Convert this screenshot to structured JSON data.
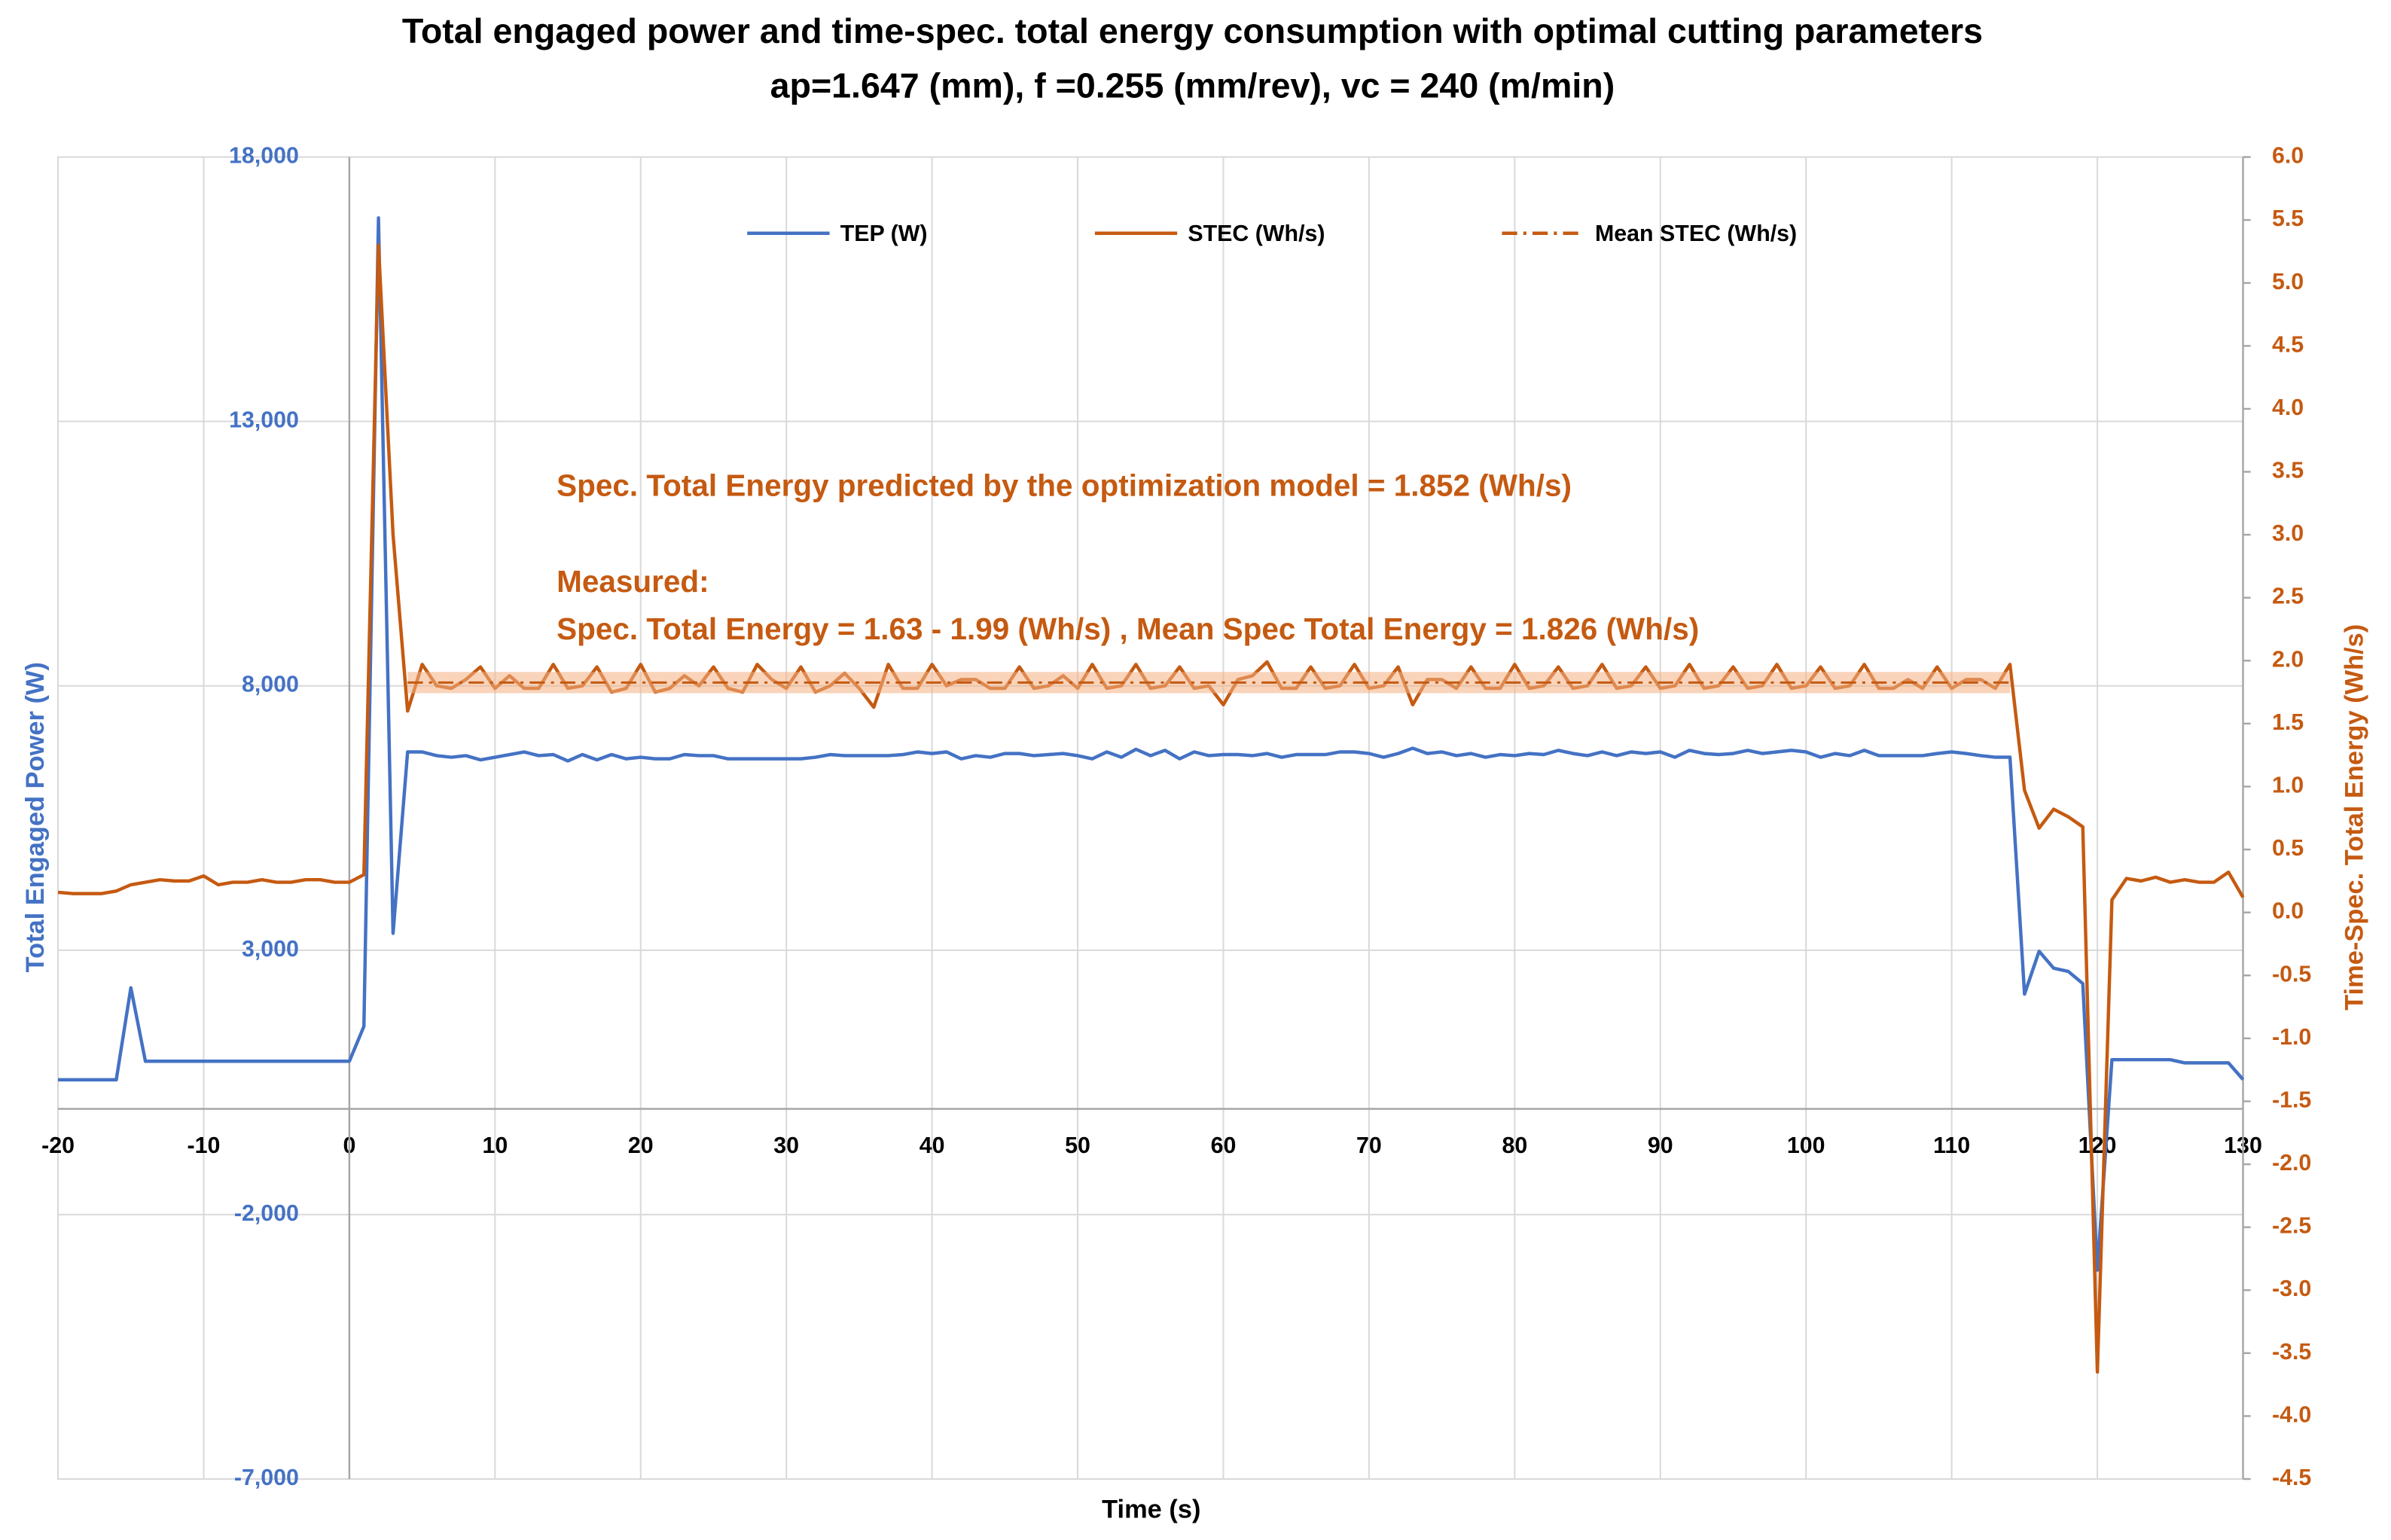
{
  "chart_data": {
    "type": "line",
    "title": "Total engaged power and time-spec. total energy consumption with optimal cutting parameters",
    "subtitle": "ap=1.647 (mm), f =0.255 (mm/rev), vc = 240 (m/min)",
    "x_label": "Time (s)",
    "y_label": "Total Engaged Power (W)",
    "y2_label": "Time-Spec. Total Energy (Wh/s)",
    "annotations": [
      "Spec. Total Energy predicted by the optimization model = 1.852 (Wh/s)",
      "Measured:",
      "Spec. Total Energy = 1.63 - 1.99 (Wh/s) , Mean Spec Total Energy = 1.826 (Wh/s)"
    ],
    "legend": "top",
    "grid": true,
    "xlim": [
      -20,
      130
    ],
    "xticks": [
      -20,
      -10,
      0,
      10,
      20,
      30,
      40,
      50,
      60,
      70,
      80,
      90,
      100,
      110,
      120,
      130
    ],
    "ylim": [
      -7000,
      18000
    ],
    "yticks": [
      {
        "value": -7000,
        "label": "-7,000"
      },
      {
        "value": -2000,
        "label": "-2,000"
      },
      {
        "value": 3000,
        "label": "3,000"
      },
      {
        "value": 8000,
        "label": "8,000"
      },
      {
        "value": 13000,
        "label": "13,000"
      },
      {
        "value": 18000,
        "label": "18,000"
      }
    ],
    "y2lim": [
      -4.5,
      6
    ],
    "y2ticks": [
      -4.5,
      {
        "value": -4,
        "label": "-4.0"
      },
      -3.5,
      {
        "value": -3,
        "label": "-3.0"
      },
      -2.5,
      {
        "value": -2,
        "label": "-2.0"
      },
      -1.5,
      {
        "value": -1,
        "label": "-1.0"
      },
      -0.5,
      {
        "value": 0,
        "label": "0.0"
      },
      0.5,
      {
        "value": 1,
        "label": "1.0"
      },
      1.5,
      {
        "value": 2,
        "label": "2.0"
      },
      2.5,
      {
        "value": 3,
        "label": "3.0"
      },
      3.5,
      {
        "value": 4,
        "label": "4.0"
      },
      4.5,
      {
        "value": 5,
        "label": "5.0"
      },
      5.5,
      {
        "value": 6,
        "label": "6.0"
      }
    ],
    "x": [
      -20,
      -19,
      -18,
      -17,
      -16,
      -15,
      -14,
      -13,
      -12,
      -11,
      -10,
      -9,
      -8,
      -7,
      -6,
      -5,
      -4,
      -3,
      -2,
      -1,
      0,
      1,
      2,
      3,
      4,
      5,
      6,
      7,
      8,
      9,
      10,
      11,
      12,
      13,
      14,
      15,
      16,
      17,
      18,
      19,
      20,
      21,
      22,
      23,
      24,
      25,
      26,
      27,
      28,
      29,
      30,
      31,
      32,
      33,
      34,
      35,
      36,
      37,
      38,
      39,
      40,
      41,
      42,
      43,
      44,
      45,
      46,
      47,
      48,
      49,
      50,
      51,
      52,
      53,
      54,
      55,
      56,
      57,
      58,
      59,
      60,
      61,
      62,
      63,
      64,
      65,
      66,
      67,
      68,
      69,
      70,
      71,
      72,
      73,
      74,
      75,
      76,
      77,
      78,
      79,
      80,
      81,
      82,
      83,
      84,
      85,
      86,
      87,
      88,
      89,
      90,
      91,
      92,
      93,
      94,
      95,
      96,
      97,
      98,
      99,
      100,
      101,
      102,
      103,
      104,
      105,
      106,
      107,
      108,
      109,
      110,
      111,
      112,
      113,
      114,
      115,
      116,
      117,
      118,
      119,
      120,
      121,
      122,
      123,
      124,
      125,
      126,
      127,
      128,
      129,
      130
    ],
    "series": [
      {
        "name": "TEP (W)",
        "color": "#4472c4",
        "axis": "y",
        "values": [
          550,
          550,
          550,
          550,
          550,
          2290,
          900,
          900,
          900,
          900,
          900,
          900,
          900,
          900,
          900,
          900,
          900,
          900,
          900,
          900,
          900,
          1560,
          16850,
          3320,
          6750,
          6750,
          6680,
          6650,
          6680,
          6600,
          6650,
          6700,
          6750,
          6680,
          6700,
          6580,
          6700,
          6600,
          6700,
          6620,
          6650,
          6620,
          6620,
          6700,
          6680,
          6680,
          6620,
          6620,
          6620,
          6620,
          6620,
          6620,
          6650,
          6700,
          6680,
          6680,
          6680,
          6680,
          6700,
          6750,
          6720,
          6750,
          6620,
          6680,
          6650,
          6720,
          6720,
          6680,
          6700,
          6720,
          6680,
          6620,
          6750,
          6650,
          6800,
          6680,
          6780,
          6620,
          6750,
          6680,
          6700,
          6700,
          6680,
          6720,
          6650,
          6700,
          6700,
          6700,
          6750,
          6750,
          6720,
          6650,
          6720,
          6820,
          6720,
          6750,
          6680,
          6720,
          6650,
          6700,
          6680,
          6720,
          6700,
          6780,
          6720,
          6680,
          6750,
          6680,
          6750,
          6720,
          6750,
          6650,
          6780,
          6720,
          6700,
          6720,
          6780,
          6720,
          6750,
          6780,
          6750,
          6650,
          6720,
          6680,
          6780,
          6680,
          6680,
          6680,
          6680,
          6720,
          6750,
          6720,
          6680,
          6650,
          6650,
          2170,
          2980,
          2660,
          2600,
          2370,
          -3050,
          930,
          930,
          930,
          930,
          930,
          870,
          870,
          870,
          870,
          555
        ]
      },
      {
        "name": "STEC (Wh/s)",
        "color": "#c55a11",
        "axis": "y2",
        "values": [
          0.16,
          0.15,
          0.15,
          0.15,
          0.17,
          0.22,
          0.24,
          0.26,
          0.25,
          0.25,
          0.29,
          0.22,
          0.24,
          0.24,
          0.26,
          0.24,
          0.24,
          0.26,
          0.26,
          0.24,
          0.24,
          0.3,
          5.3,
          3.0,
          1.6,
          1.97,
          1.8,
          1.78,
          1.85,
          1.95,
          1.78,
          1.88,
          1.78,
          1.78,
          1.97,
          1.78,
          1.8,
          1.95,
          1.75,
          1.78,
          1.97,
          1.75,
          1.78,
          1.88,
          1.8,
          1.95,
          1.78,
          1.75,
          1.97,
          1.85,
          1.78,
          1.95,
          1.75,
          1.8,
          1.9,
          1.78,
          1.63,
          1.97,
          1.78,
          1.78,
          1.97,
          1.8,
          1.85,
          1.85,
          1.78,
          1.78,
          1.95,
          1.78,
          1.8,
          1.88,
          1.78,
          1.97,
          1.78,
          1.8,
          1.97,
          1.78,
          1.8,
          1.95,
          1.78,
          1.8,
          1.65,
          1.85,
          1.88,
          1.99,
          1.78,
          1.78,
          1.95,
          1.78,
          1.8,
          1.97,
          1.78,
          1.8,
          1.95,
          1.65,
          1.85,
          1.85,
          1.78,
          1.95,
          1.78,
          1.78,
          1.97,
          1.78,
          1.8,
          1.95,
          1.78,
          1.8,
          1.97,
          1.78,
          1.8,
          1.95,
          1.78,
          1.8,
          1.97,
          1.78,
          1.8,
          1.95,
          1.78,
          1.8,
          1.97,
          1.78,
          1.8,
          1.95,
          1.78,
          1.8,
          1.97,
          1.78,
          1.78,
          1.85,
          1.78,
          1.95,
          1.78,
          1.85,
          1.85,
          1.78,
          1.97,
          0.97,
          0.67,
          0.82,
          0.76,
          0.68,
          -3.65,
          0.1,
          0.27,
          0.25,
          0.28,
          0.24,
          0.26,
          0.24,
          0.24,
          0.32,
          0.12
        ]
      },
      {
        "name": "Mean STEC (Wh/s)",
        "color": "#c55a11",
        "axis": "y2",
        "dash": "dashdot",
        "x": [
          4,
          114
        ],
        "values": [
          1.826,
          1.826
        ]
      }
    ]
  }
}
